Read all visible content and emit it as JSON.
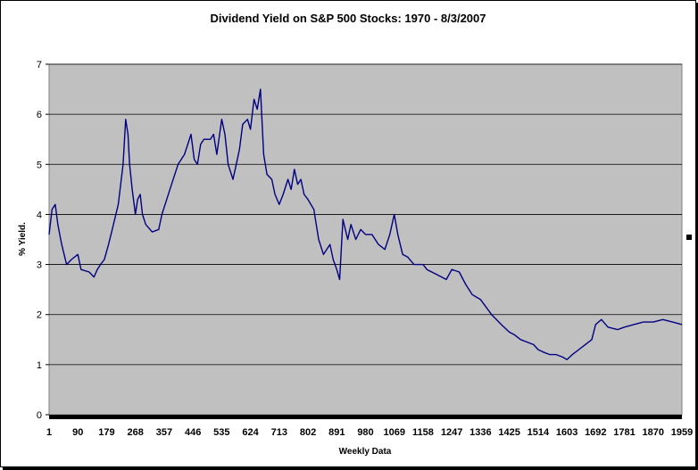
{
  "chart_data": {
    "type": "line",
    "title": "Dividend Yield on S&P 500 Stocks: 1970 - 8/3/2007",
    "xlabel": "Weekly Data",
    "ylabel": "% Yield.",
    "xlim": [
      1,
      1959
    ],
    "ylim": [
      0,
      7
    ],
    "y_ticks": [
      "0",
      "1",
      "2",
      "3",
      "4",
      "5",
      "6",
      "7"
    ],
    "x_ticks": [
      "1",
      "90",
      "179",
      "268",
      "357",
      "446",
      "535",
      "624",
      "713",
      "802",
      "891",
      "980",
      "1069",
      "1158",
      "1247",
      "1336",
      "1425",
      "1514",
      "1603",
      "1692",
      "1781",
      "1870",
      "1959"
    ],
    "grid": "horizontal",
    "colors": {
      "line": "#000080",
      "plot_background": "#c0c0c0",
      "gridline": "#000000"
    },
    "series": [
      {
        "x": [
          1,
          10,
          20,
          28,
          40,
          55,
          70,
          90,
          100,
          125,
          140,
          150,
          160,
          172,
          185,
          200,
          215,
          230,
          238,
          245,
          250,
          258,
          268,
          275,
          283,
          290,
          300,
          320,
          340,
          350,
          360,
          380,
          400,
          420,
          440,
          450,
          460,
          470,
          480,
          500,
          510,
          520,
          535,
          545,
          555,
          570,
          580,
          590,
          600,
          615,
          624,
          635,
          645,
          655,
          665,
          675,
          690,
          700,
          713,
          725,
          740,
          750,
          760,
          770,
          780,
          790,
          802,
          820,
          835,
          850,
          870,
          880,
          891,
          900,
          910,
          925,
          935,
          950,
          965,
          980,
          1000,
          1020,
          1040,
          1055,
          1069,
          1080,
          1095,
          1110,
          1130,
          1158,
          1170,
          1200,
          1230,
          1247,
          1270,
          1290,
          1310,
          1336,
          1370,
          1400,
          1425,
          1440,
          1460,
          1480,
          1500,
          1514,
          1530,
          1550,
          1570,
          1590,
          1603,
          1620,
          1640,
          1660,
          1680,
          1692,
          1710,
          1730,
          1760,
          1781,
          1810,
          1840,
          1870,
          1900,
          1930,
          1959
        ],
        "y": [
          3.6,
          4.1,
          4.2,
          3.8,
          3.4,
          3.0,
          3.1,
          3.2,
          2.9,
          2.85,
          2.75,
          2.9,
          3.0,
          3.1,
          3.4,
          3.8,
          4.2,
          5.0,
          5.9,
          5.6,
          5.0,
          4.5,
          4.0,
          4.3,
          4.4,
          4.0,
          3.8,
          3.65,
          3.7,
          4.0,
          4.2,
          4.6,
          5.0,
          5.2,
          5.6,
          5.1,
          5.0,
          5.4,
          5.5,
          5.5,
          5.6,
          5.2,
          5.9,
          5.6,
          5.0,
          4.7,
          5.0,
          5.3,
          5.8,
          5.9,
          5.7,
          6.3,
          6.1,
          6.5,
          5.2,
          4.8,
          4.7,
          4.4,
          4.2,
          4.4,
          4.7,
          4.5,
          4.9,
          4.6,
          4.7,
          4.4,
          4.3,
          4.1,
          3.5,
          3.2,
          3.4,
          3.1,
          2.9,
          2.7,
          3.9,
          3.5,
          3.8,
          3.5,
          3.7,
          3.6,
          3.6,
          3.4,
          3.3,
          3.6,
          4.0,
          3.6,
          3.2,
          3.15,
          3.0,
          3.0,
          2.9,
          2.8,
          2.7,
          2.9,
          2.85,
          2.6,
          2.4,
          2.3,
          2.0,
          1.8,
          1.65,
          1.6,
          1.5,
          1.45,
          1.4,
          1.3,
          1.25,
          1.2,
          1.2,
          1.15,
          1.1,
          1.2,
          1.3,
          1.4,
          1.5,
          1.8,
          1.9,
          1.75,
          1.7,
          1.75,
          1.8,
          1.85,
          1.85,
          1.9,
          1.85,
          1.8
        ]
      }
    ]
  }
}
